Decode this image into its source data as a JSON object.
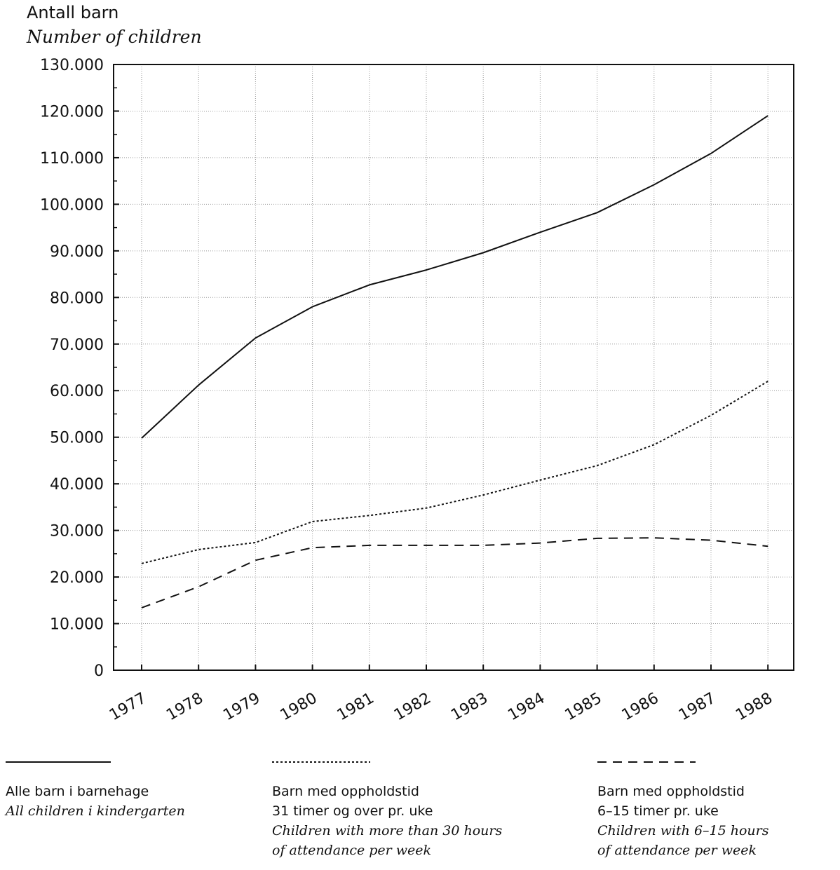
{
  "y_title_no": "Antall barn",
  "y_title_en": "Number of children",
  "chart_data": {
    "type": "line",
    "ylabel": "Antall barn / Number of children",
    "ylim": [
      0,
      130000
    ],
    "y_ticks": [
      "0",
      "10.000",
      "20.000",
      "30.000",
      "40.000",
      "50.000",
      "60.000",
      "70.000",
      "80.000",
      "90.000",
      "100.000",
      "110.000",
      "120.000",
      "130.000"
    ],
    "categories": [
      "1977",
      "1978",
      "1979",
      "1980",
      "1981",
      "1982",
      "1983",
      "1984",
      "1985",
      "1986",
      "1987",
      "1988"
    ],
    "grid": true,
    "series": [
      {
        "name": "Alle barn i barnehage / All children i kindergarten",
        "style": "solid",
        "values": [
          49800,
          61200,
          71300,
          78000,
          82700,
          85900,
          89600,
          94000,
          98200,
          104200,
          110900,
          119000
        ]
      },
      {
        "name": "Barn med oppholdstid 31 timer og over pr. uke / Children with more than 30 hours of attendance per week",
        "style": "dotted",
        "values": [
          22900,
          25900,
          27400,
          31900,
          33200,
          34800,
          37600,
          40800,
          43900,
          48400,
          54700,
          62000
        ]
      },
      {
        "name": "Barn med oppholdstid 6-15 timer pr. uke / Children with 6-15 hours of attendance per week",
        "style": "dashed",
        "values": [
          13400,
          17900,
          23600,
          26300,
          26800,
          26800,
          26800,
          27300,
          28300,
          28400,
          27900,
          26600
        ]
      }
    ]
  },
  "legend": [
    {
      "l1": "Alle barn i barnehage",
      "l2": "All children i kindergarten"
    },
    {
      "l1": "Barn med oppholdstid",
      "l2": "31 timer og over pr. uke",
      "l3": "Children with more than 30 hours",
      "l4": "of attendance per week"
    },
    {
      "l1": "Barn med oppholdstid",
      "l2": "6–15 timer pr. uke",
      "l3": "Children with 6–15 hours",
      "l4": "of attendance per week"
    }
  ]
}
